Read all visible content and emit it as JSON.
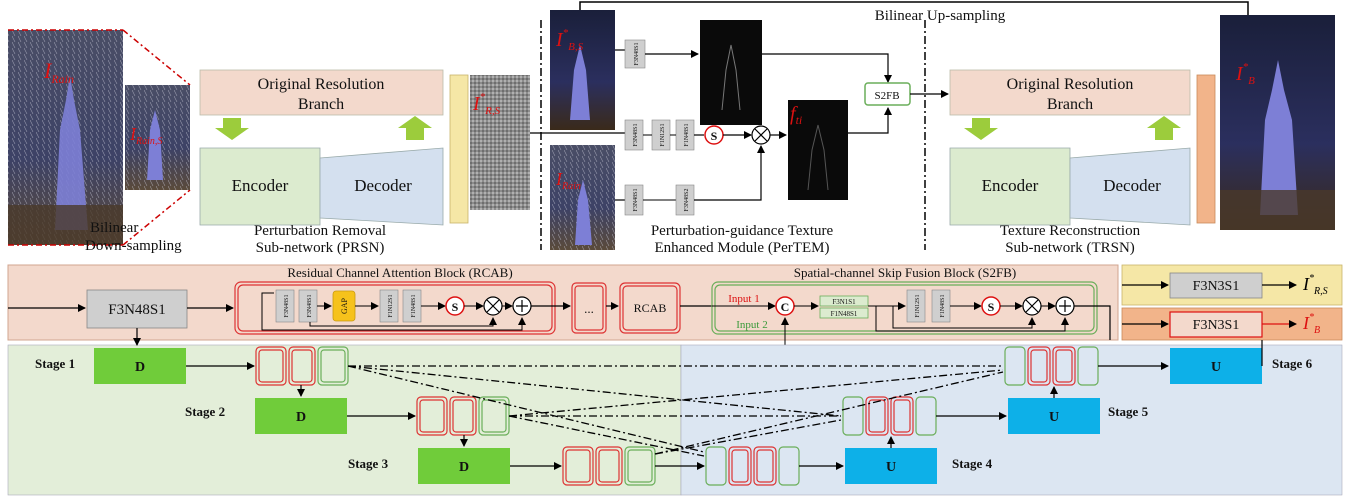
{
  "top": {
    "bilinear_up": "Bilinear Up-sampling",
    "rain_label": "I",
    "rain_sub": "Rain",
    "rain_s_label": "I",
    "rain_s_sub": "Rain,S",
    "bilinear_down_line1": "Bilinear",
    "bilinear_down_line2": "Down-sampling",
    "prsn": {
      "branch_line1": "Original Resolution",
      "branch_line2": "Branch",
      "encoder": "Encoder",
      "decoder": "Decoder",
      "caption_line1": "Perturbation Removal",
      "caption_line2": "Sub-network (PRSN)"
    },
    "out_prsn_label": "I",
    "out_prsn_sup": "*",
    "out_prsn_sub": "R,S",
    "pertem": {
      "in_bs_label": "I",
      "in_bs_sup": "*",
      "in_bs_sub": "B,S",
      "in_rain_label": "I",
      "in_rain_sub": "Rain",
      "conv_top": "F3N48S1",
      "conv_mid": [
        "F3N48S1",
        "F1N12S1",
        "F1N48S1"
      ],
      "conv_bot": [
        "F3N48S1",
        "F3N48S2"
      ],
      "sigmoid": "S",
      "fti_label": "f",
      "fti_sub": "ti",
      "s2fb": "S2FB",
      "caption_line1": "Perturbation-guidance Texture",
      "caption_line2": "Enhanced Module (PerTEM)"
    },
    "trsn": {
      "branch_line1": "Original Resolution",
      "branch_line2": "Branch",
      "encoder": "Encoder",
      "decoder": "Decoder",
      "caption_line1": "Texture Reconstruction",
      "caption_line2": "Sub-network (TRSN)"
    },
    "out_b_label": "I",
    "out_b_sup": "*",
    "out_b_sub": "B"
  },
  "middle": {
    "first_conv": "F3N48S1",
    "rcab_title": "Residual Channel Attention Block (RCAB)",
    "rcab_convs": [
      "F3N48S1",
      "F3N48S1"
    ],
    "gap": "GAP",
    "rcab_convs2": [
      "F1N12S1",
      "F1N48S1"
    ],
    "sigmoid": "S",
    "ellipsis": "...",
    "rcab_box": "RCAB",
    "s2fb_title": "Spatial-channel Skip Fusion Block (S2FB)",
    "input1": "Input 1",
    "input2": "Input 2",
    "concat": "C",
    "s2fb_conv_a": "F3N1S1",
    "s2fb_conv_b": "F1N48S1",
    "s2fb_convs2": [
      "F1N12S1",
      "F1N48S1"
    ],
    "out_conv_1": "F3N3S1",
    "out_conv_2": "F3N3S1",
    "out1_label": "I",
    "out1_sup": "*",
    "out1_sub": "R,S",
    "out2_label": "I",
    "out2_sup": "*",
    "out2_sub": "B"
  },
  "bottom": {
    "stage1": "Stage 1",
    "stage2": "Stage 2",
    "stage3": "Stage 3",
    "stage4": "Stage 4",
    "stage5": "Stage 5",
    "stage6": "Stage 6",
    "down": "D",
    "up": "U"
  },
  "colors": {
    "peach": "#f3d9cc",
    "encoder": "#dcebcf",
    "decoder": "#d4e0ef",
    "green_arrow": "#9ccc3c",
    "yellow_bar": "#f5e7a6",
    "orange_bar": "#f2b48a",
    "d_green": "#70cc3a",
    "u_blue": "#0db0e8",
    "stage_green_bg": "#e3eed9",
    "stage_blue_bg": "#dce6f2",
    "gap_yellow": "#f6c21c",
    "conv_gray": "#cfcfcf"
  }
}
